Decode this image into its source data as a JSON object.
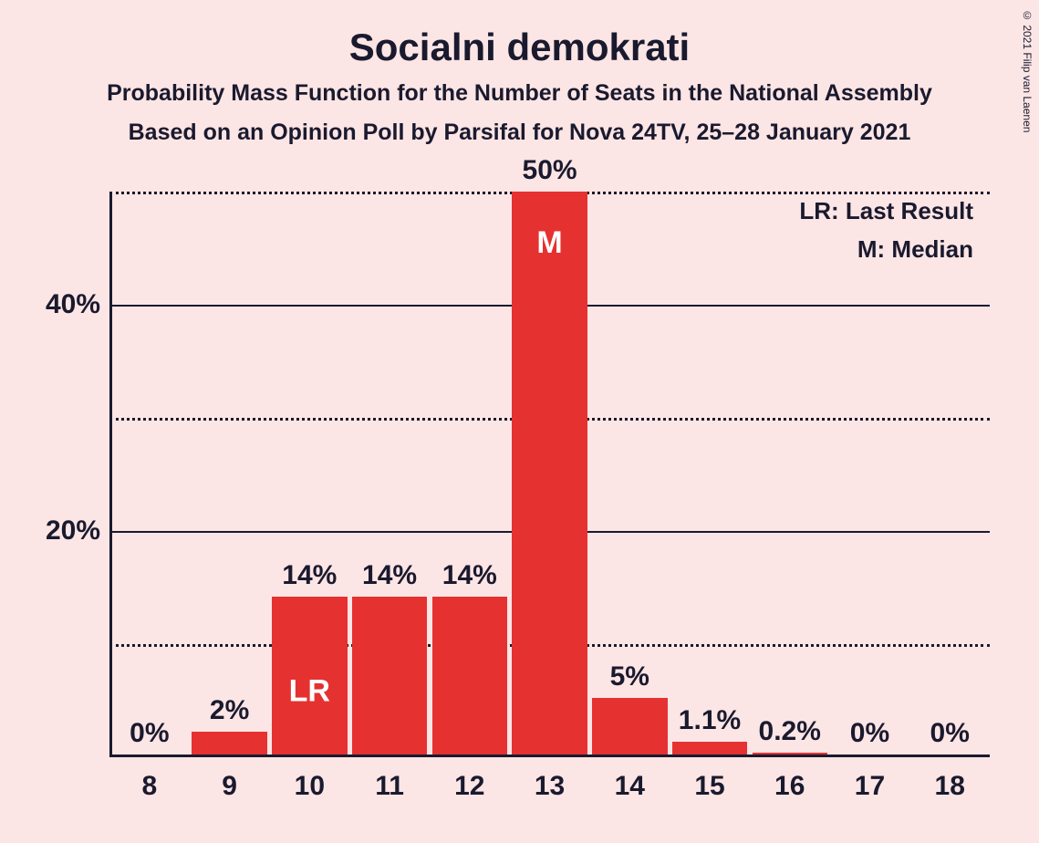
{
  "title": "Socialni demokrati",
  "subtitle1": "Probability Mass Function for the Number of Seats in the National Assembly",
  "subtitle2": "Based on an Opinion Poll by Parsifal for Nova 24TV, 25–28 January 2021",
  "copyright": "© 2021 Filip van Laenen",
  "legend": {
    "lr": "LR: Last Result",
    "m": "M: Median"
  },
  "chart": {
    "type": "bar",
    "bar_color": "#e63131",
    "background_color": "#fce5e5",
    "axis_color": "#1a1a2e",
    "text_color": "#1a1a2e",
    "annot_color": "#ffffff",
    "title_fontsize": 42,
    "label_fontsize": 30,
    "annot_fontsize": 34,
    "legend_fontsize": 26,
    "ylim_max": 50,
    "y_ticks_solid": [
      20,
      40
    ],
    "y_ticks_dotted": [
      10,
      30,
      50
    ],
    "bar_width_ratio": 0.94,
    "categories": [
      "8",
      "9",
      "10",
      "11",
      "12",
      "13",
      "14",
      "15",
      "16",
      "17",
      "18"
    ],
    "values": [
      0,
      2,
      14,
      14,
      14,
      50,
      5,
      1.1,
      0.2,
      0,
      0
    ],
    "value_labels": [
      "0%",
      "2%",
      "14%",
      "14%",
      "14%",
      "50%",
      "5%",
      "1.1%",
      "0.2%",
      "0%",
      "0%"
    ],
    "annotations": {
      "2": "LR",
      "5": "M"
    },
    "annotation_positions": {
      "2": "mid",
      "5": "top"
    }
  }
}
